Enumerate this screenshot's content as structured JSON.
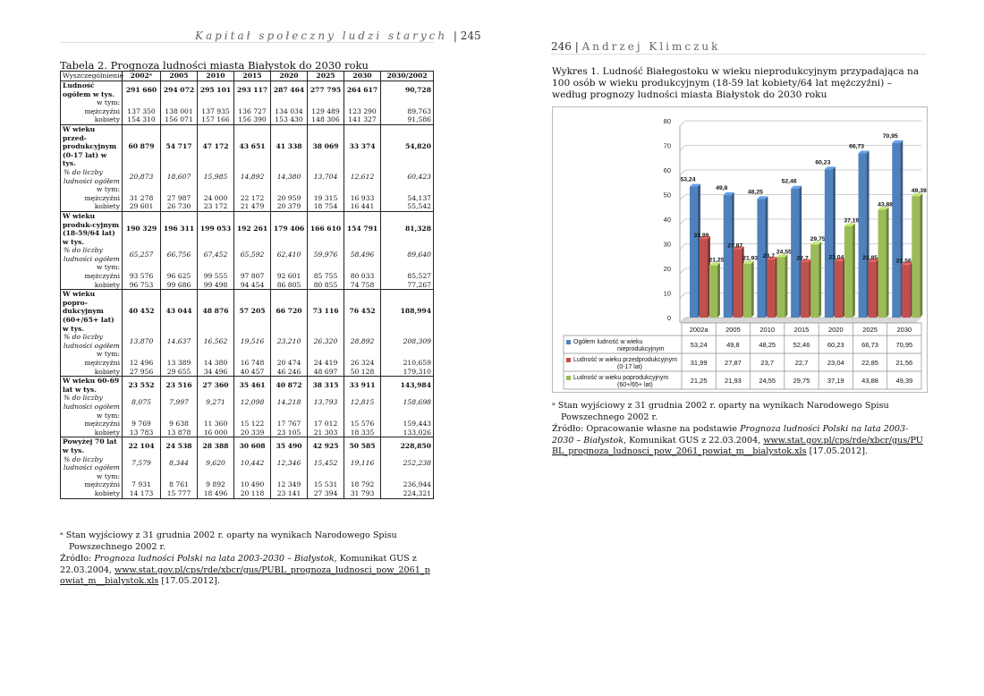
{
  "left_page": {
    "running_head": "Kapitał społeczny ludzi starych",
    "page_number": "245",
    "table_caption": "Tabela 2. Prognoza ludności miasta Białystok do 2030 roku",
    "table": {
      "headers": [
        "Wyszczególnienie",
        "2002ᵃ",
        "2005",
        "2010",
        "2015",
        "2020",
        "2025",
        "2030",
        "2030/2002"
      ],
      "rows": [
        {
          "label": "Ludność ogółem w tys.",
          "values": [
            "291 660",
            "294 072",
            "295 101",
            "293 117",
            "287 464",
            "277 795",
            "264 617",
            "90,728"
          ],
          "style": "bold",
          "group": true
        },
        {
          "label": "w tym:",
          "values": [
            "",
            "",
            "",
            "",
            "",
            "",
            "",
            ""
          ],
          "style": "right"
        },
        {
          "label": "mężczyźni",
          "values": [
            "137 350",
            "138 001",
            "137 935",
            "136 727",
            "134 034",
            "129 489",
            "123 290",
            "89,763"
          ],
          "style": "right"
        },
        {
          "label": "kobiety",
          "values": [
            "154 310",
            "156 071",
            "157 166",
            "156 390",
            "153 430",
            "148 306",
            "141 327",
            "91,586"
          ],
          "style": "right"
        },
        {
          "label": "W wieku przed-produkcyjnym (0-17 lat) w tys.",
          "values": [
            "60 879",
            "54 717",
            "47 172",
            "43 651",
            "41 338",
            "38 069",
            "33 374",
            "54,820"
          ],
          "style": "bold",
          "group": true
        },
        {
          "label": "% do liczby ludności ogółem",
          "values": [
            "20,873",
            "18,607",
            "15,985",
            "14,892",
            "14,380",
            "13,704",
            "12,612",
            "60,423"
          ],
          "style": "italic"
        },
        {
          "label": "w tym:",
          "values": [
            "",
            "",
            "",
            "",
            "",
            "",
            "",
            ""
          ],
          "style": "right"
        },
        {
          "label": "mężczyźni",
          "values": [
            "31 278",
            "27 987",
            "24 000",
            "22 172",
            "20 959",
            "19 315",
            "16 933",
            "54,137"
          ],
          "style": "right"
        },
        {
          "label": "kobiety",
          "values": [
            "29 601",
            "26 730",
            "23 172",
            "21 479",
            "20 379",
            "18 754",
            "16 441",
            "55,542"
          ],
          "style": "right"
        },
        {
          "label": "W wieku produk-cyjnym (18-59/64 lat) w tys.",
          "values": [
            "190 329",
            "196 311",
            "199 053",
            "192 261",
            "179 406",
            "166 610",
            "154 791",
            "81,328"
          ],
          "style": "bold",
          "group": true
        },
        {
          "label": "% do liczby ludności ogółem",
          "values": [
            "65,257",
            "66,756",
            "67,452",
            "65,592",
            "62,410",
            "59,976",
            "58,496",
            "89,640"
          ],
          "style": "italic"
        },
        {
          "label": "w tym:",
          "values": [
            "",
            "",
            "",
            "",
            "",
            "",
            "",
            ""
          ],
          "style": "right"
        },
        {
          "label": "mężczyźni",
          "values": [
            "93 576",
            "96 625",
            "99 555",
            "97 807",
            "92 601",
            "85 755",
            "80 033",
            "85,527"
          ],
          "style": "right"
        },
        {
          "label": "kobiety",
          "values": [
            "96 753",
            "99 686",
            "99 498",
            "94 454",
            "86 805",
            "80 855",
            "74 758",
            "77,267"
          ],
          "style": "right"
        },
        {
          "label": "W wieku popro-dukcyjnym (60+/65+ lat) w tys.",
          "values": [
            "40 452",
            "43 044",
            "48 876",
            "57 205",
            "66 720",
            "73 116",
            "76 452",
            "188,994"
          ],
          "style": "bold",
          "group": true
        },
        {
          "label": "% do liczby ludności ogółem",
          "values": [
            "13,870",
            "14,637",
            "16,562",
            "19,516",
            "23,210",
            "26,320",
            "28,892",
            "208,309"
          ],
          "style": "italic"
        },
        {
          "label": "w tym:",
          "values": [
            "",
            "",
            "",
            "",
            "",
            "",
            "",
            ""
          ],
          "style": "right"
        },
        {
          "label": "mężczyźni",
          "values": [
            "12 496",
            "13 389",
            "14 380",
            "16 748",
            "20 474",
            "24 419",
            "26 324",
            "210,659"
          ],
          "style": "right"
        },
        {
          "label": "kobiety",
          "values": [
            "27 956",
            "29 655",
            "34 496",
            "40 457",
            "46 246",
            "48 697",
            "50 128",
            "179,310"
          ],
          "style": "right"
        },
        {
          "label": "W wieku 60-69 lat w tys.",
          "values": [
            "23 552",
            "23 516",
            "27 360",
            "35 461",
            "40 872",
            "38 315",
            "33 911",
            "143,984"
          ],
          "style": "bold",
          "group": true
        },
        {
          "label": "% do liczby ludności ogółem",
          "values": [
            "8,075",
            "7,997",
            "9,271",
            "12,098",
            "14,218",
            "13,793",
            "12,815",
            "158,698"
          ],
          "style": "italic"
        },
        {
          "label": "w tym:",
          "values": [
            "",
            "",
            "",
            "",
            "",
            "",
            "",
            ""
          ],
          "style": "right"
        },
        {
          "label": "mężczyźni",
          "values": [
            "9 769",
            "9 638",
            "11 360",
            "15 122",
            "17 767",
            "17 012",
            "15 576",
            "159,443"
          ],
          "style": "right"
        },
        {
          "label": "kobiety",
          "values": [
            "13 783",
            "13 878",
            "16 000",
            "20 339",
            "23 105",
            "21 303",
            "18 335",
            "133,026"
          ],
          "style": "right"
        },
        {
          "label": "Powyżej 70 lat w tys.",
          "values": [
            "22 104",
            "24 538",
            "28 388",
            "30 608",
            "35 490",
            "42 925",
            "50 585",
            "228,850"
          ],
          "style": "bold",
          "group": true
        },
        {
          "label": "% do liczby ludności ogółem",
          "values": [
            "7,579",
            "8,344",
            "9,620",
            "10,442",
            "12,346",
            "15,452",
            "19,116",
            "252,238"
          ],
          "style": "italic"
        },
        {
          "label": "w tym:",
          "values": [
            "",
            "",
            "",
            "",
            "",
            "",
            "",
            ""
          ],
          "style": "right"
        },
        {
          "label": "mężczyźni",
          "values": [
            "7 931",
            "8 761",
            "9 892",
            "10 490",
            "12 349",
            "15 531",
            "18 792",
            "236,944"
          ],
          "style": "right"
        },
        {
          "label": "kobiety",
          "values": [
            "14 173",
            "15 777",
            "18 496",
            "20 118",
            "23 141",
            "27 394",
            "31 793",
            "224,321"
          ],
          "style": "right"
        }
      ]
    },
    "footnote": "ᵃ Stan wyjściowy z 31 grudnia 2002 r. oparty na wynikach Narodowego Spisu Powszechnego 2002 r.",
    "source_prefix": "Źródło: ",
    "source_title": "Prognoza ludności Polski na lata 2003-2030 – Białystok",
    "source_rest": ", Komunikat GUS z 22.03.2004,",
    "source_url": "www.stat.gov.pl/cps/rde/xbcr/gus/PUBL_prognoza_ludnosci_pow_2061_powiat_m__bialystok.xls",
    "source_date": " [17.05.2012]."
  },
  "right_page": {
    "page_number": "246",
    "running_head": "Andrzej Klimczuk",
    "figure_caption": "Wykres 1. Ludność Białegostoku w wieku nieprodukcyjnym przypadająca na 100 osób w wieku produkcyjnym (18-59 lat kobiety/64 lat mężczyźni) – według prognozy ludności miasta Białystok do 2030 roku",
    "footnote": "ᵃ Stan wyjściowy z 31 grudnia 2002 r. oparty na wynikach Narodowego Spisu Powszechnego 2002 r.",
    "source_prefix": "Źródło: Opracowanie własne na podstawie ",
    "source_title": "Prognoza ludności Polski na lata 2003-2030 – Białystok",
    "source_rest": ", Komunikat GUS z 22.03.2004, ",
    "source_url": "www.stat.gov.pl/cps/rde/xbcr/gus/PUBL_prognoza_ludnosci_pow_2061_powiat_m__bialystok.xls",
    "source_date": " [17.05.2012]."
  },
  "chart_data": {
    "type": "bar",
    "title": "",
    "xlabel": "",
    "ylabel": "",
    "categories": [
      "2002a",
      "2005",
      "2010",
      "2015",
      "2020",
      "2025",
      "2030"
    ],
    "ylim": [
      0,
      80
    ],
    "yticks": [
      0,
      10,
      20,
      30,
      40,
      50,
      60,
      70,
      80
    ],
    "grid": true,
    "legend": "table-below",
    "series": [
      {
        "name": "Ogółem ludność w wieku nieprodukcyjnym",
        "color": "#4f81bd",
        "values": [
          53.24,
          49.8,
          48.25,
          52.46,
          60.23,
          66.73,
          70.95
        ],
        "labels": [
          "53,24",
          "49,8",
          "48,25",
          "52,46",
          "60,23",
          "66,73",
          "70,95"
        ]
      },
      {
        "name": "Ludność w wieku przedprodukcyjnym (0-17 lat)",
        "color": "#c0504d",
        "values": [
          31.99,
          27.87,
          23.7,
          22.7,
          23.04,
          22.85,
          21.56
        ],
        "labels": [
          "31,99",
          "27,87",
          "23,7",
          "22,7",
          "23,04",
          "22,85",
          "21,56"
        ]
      },
      {
        "name": "Ludność w wieku poprodukcyjnym (60+/65+ lat)",
        "color": "#9bbb59",
        "values": [
          21.25,
          21.93,
          24.55,
          29.75,
          37.19,
          43.88,
          49.39
        ],
        "labels": [
          "21,25",
          "21,93",
          "24,55",
          "29,75",
          "37,19",
          "43,88",
          "49,39"
        ]
      }
    ]
  }
}
